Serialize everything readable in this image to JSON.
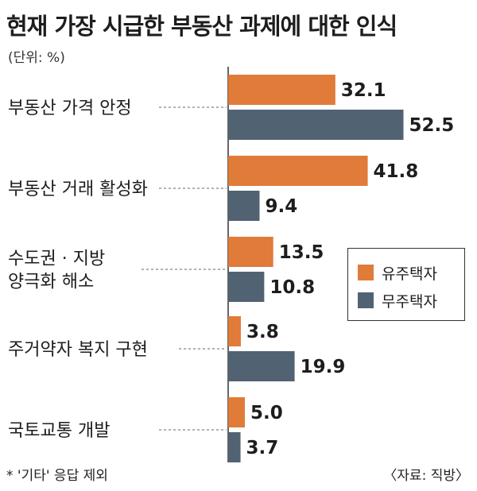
{
  "title": "현재 가장 시급한 부동산 과제에 대한 인식",
  "unit": "(단위: %)",
  "footnote": "* '기타' 응답 제외",
  "source": "〈자료: 직방〉",
  "colors": {
    "owner": "#e07b39",
    "nonowner": "#516273",
    "axis": "#333333",
    "dash": "#666666"
  },
  "chart_data": {
    "type": "bar",
    "orientation": "horizontal",
    "title": "현재 가장 시급한 부동산 과제에 대한 인식",
    "unit": "%",
    "categories": [
      [
        "부동산 가격 안정"
      ],
      [
        "부동산 거래 활성화"
      ],
      [
        "수도권 · 지방",
        "양극화 해소"
      ],
      [
        "주거약자 복지 구현"
      ],
      [
        "국토교통 개발"
      ]
    ],
    "series": [
      {
        "name": "유주택자",
        "values": [
          32.1,
          41.8,
          13.5,
          3.8,
          5.0
        ],
        "labels": [
          "32.1",
          "41.8",
          "13.5",
          "3.8",
          "5.0"
        ]
      },
      {
        "name": "무주택자",
        "values": [
          52.5,
          9.4,
          10.8,
          19.9,
          3.7
        ],
        "labels": [
          "52.5",
          "9.4",
          "10.8",
          "19.9",
          "3.7"
        ]
      }
    ],
    "xlim": [
      0,
      60
    ],
    "legend": "right",
    "grid": false
  }
}
